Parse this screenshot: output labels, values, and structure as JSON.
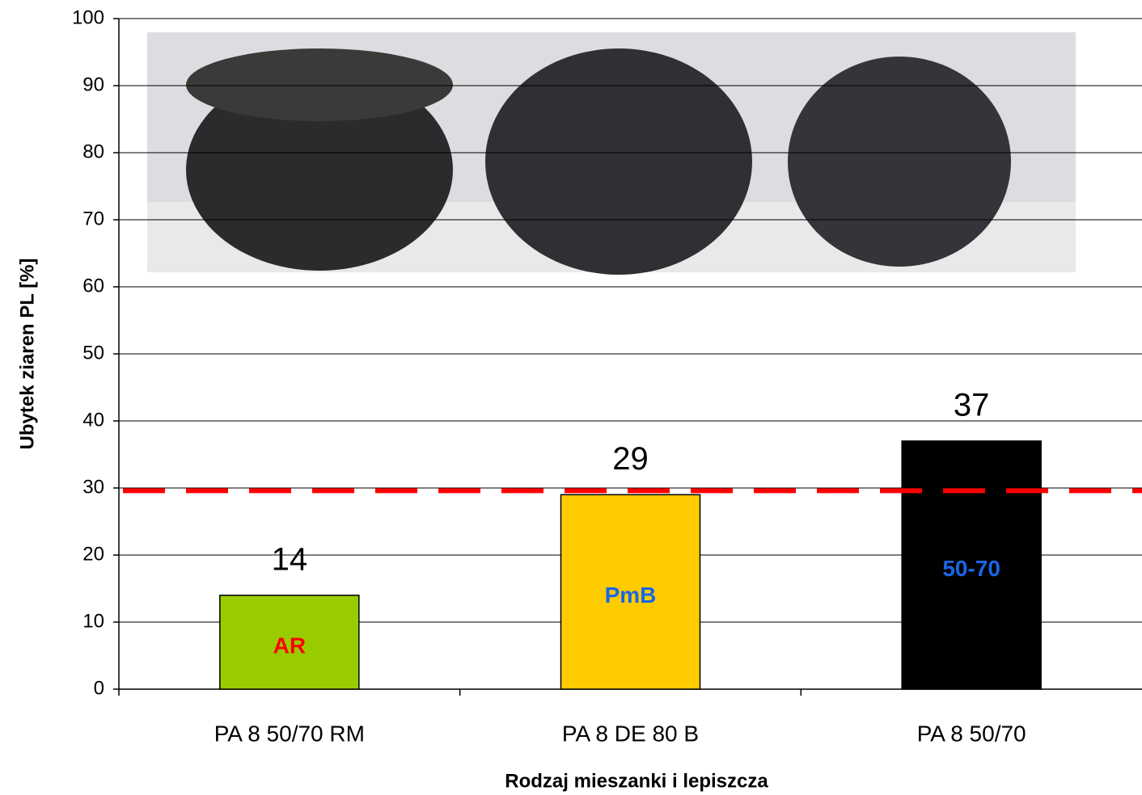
{
  "chart_data": {
    "type": "bar",
    "y_label": "Ubytek ziaren PL [%]",
    "x_label": "Rodzaj mieszanki i lepiszcza",
    "categories": [
      "PA 8 50/70 RM",
      "PA 8 DE 80 B",
      "PA 8 50/70"
    ],
    "values": [
      14,
      29,
      37
    ],
    "colors": [
      "#99cc00",
      "#ffcc00",
      "#000000"
    ],
    "bar_labels": [
      "AR",
      "PmB",
      "50-70"
    ],
    "bar_label_colors": [
      "#ff0000",
      "#1a66e6",
      "#1a66e6"
    ],
    "reference_line": {
      "value": 29.6,
      "color": "#ff0000"
    },
    "ylim": [
      0,
      100
    ],
    "yticks": [
      0,
      10,
      20,
      30,
      40,
      50,
      60,
      70,
      80,
      90,
      100
    ],
    "grid": true
  }
}
